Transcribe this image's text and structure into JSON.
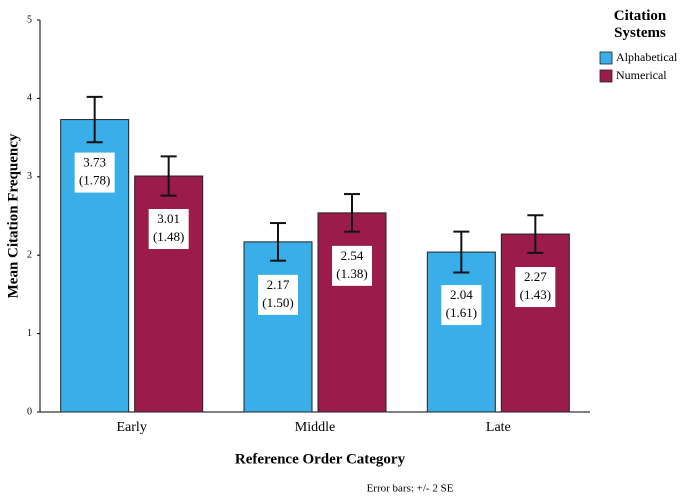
{
  "chart_data": {
    "type": "bar",
    "y_label": "Mean Citation Frequency",
    "x_label": "Reference Order Category",
    "note": "Error bars: +/- 2 SE",
    "legend_title": "Citation Systems",
    "legend": "top-right",
    "categories": [
      "Early",
      "Middle",
      "Late"
    ],
    "series": [
      {
        "name": "Alphabetical",
        "color": "#3aaee9",
        "values": [
          3.73,
          2.17,
          2.04
        ],
        "sd": [
          1.78,
          1.5,
          1.61
        ],
        "sd_labels": [
          "(1.78)",
          "(1.50)",
          "(1.61)"
        ],
        "errors": [
          0.29,
          0.24,
          0.26
        ]
      },
      {
        "name": "Numerical",
        "color": "#9b1b4a",
        "values": [
          3.01,
          2.54,
          2.27
        ],
        "sd": [
          1.48,
          1.38,
          1.43
        ],
        "sd_labels": [
          "(1.48)",
          "(1.38)",
          "(1.43)"
        ],
        "errors": [
          0.25,
          0.24,
          0.24
        ]
      }
    ],
    "ylim": [
      0,
      5
    ],
    "yticks": [
      0,
      1,
      2,
      3,
      4,
      5
    ],
    "grid": false
  }
}
